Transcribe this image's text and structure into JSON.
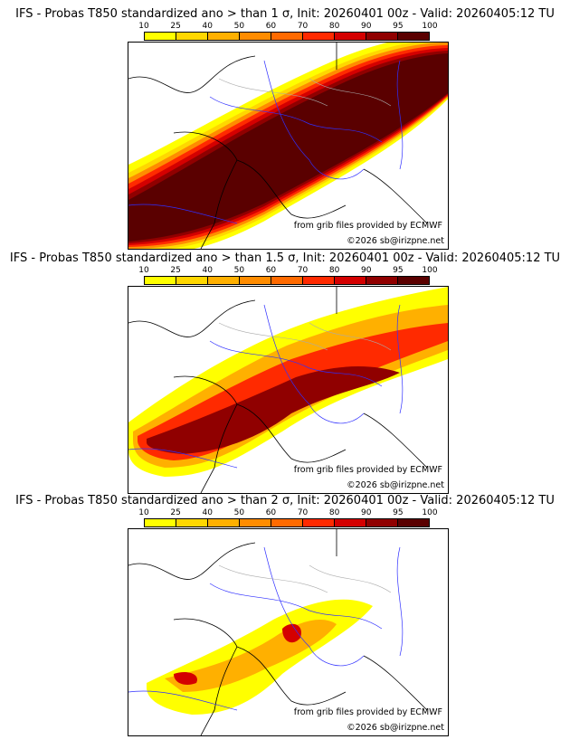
{
  "panels": [
    {
      "title": "IFS - Probas T850  standardized ano > than 1 σ, Init: 20260401 00z - Valid: 20260405:12 TU",
      "threshold_sigma": 1
    },
    {
      "title": "IFS - Probas T850  standardized ano > than 1.5 σ, Init: 20260401 00z - Valid: 20260405:12 TU",
      "threshold_sigma": 1.5
    },
    {
      "title": "IFS - Probas T850  standardized ano > than 2 σ, Init: 20260401 00z - Valid: 20260405:12 TU",
      "threshold_sigma": 2
    }
  ],
  "colorbar": {
    "ticks": [
      "10",
      "25",
      "40",
      "50",
      "60",
      "70",
      "80",
      "90",
      "95",
      "100"
    ],
    "colors": [
      "#ffff00",
      "#ffd700",
      "#ffb000",
      "#ff8c00",
      "#ff6a00",
      "#ff2a00",
      "#d40000",
      "#900000",
      "#5a0000"
    ]
  },
  "credits": {
    "source": "from grib files provided by ECMWF",
    "copyright": "©2026 sb@irizpne.net"
  }
}
